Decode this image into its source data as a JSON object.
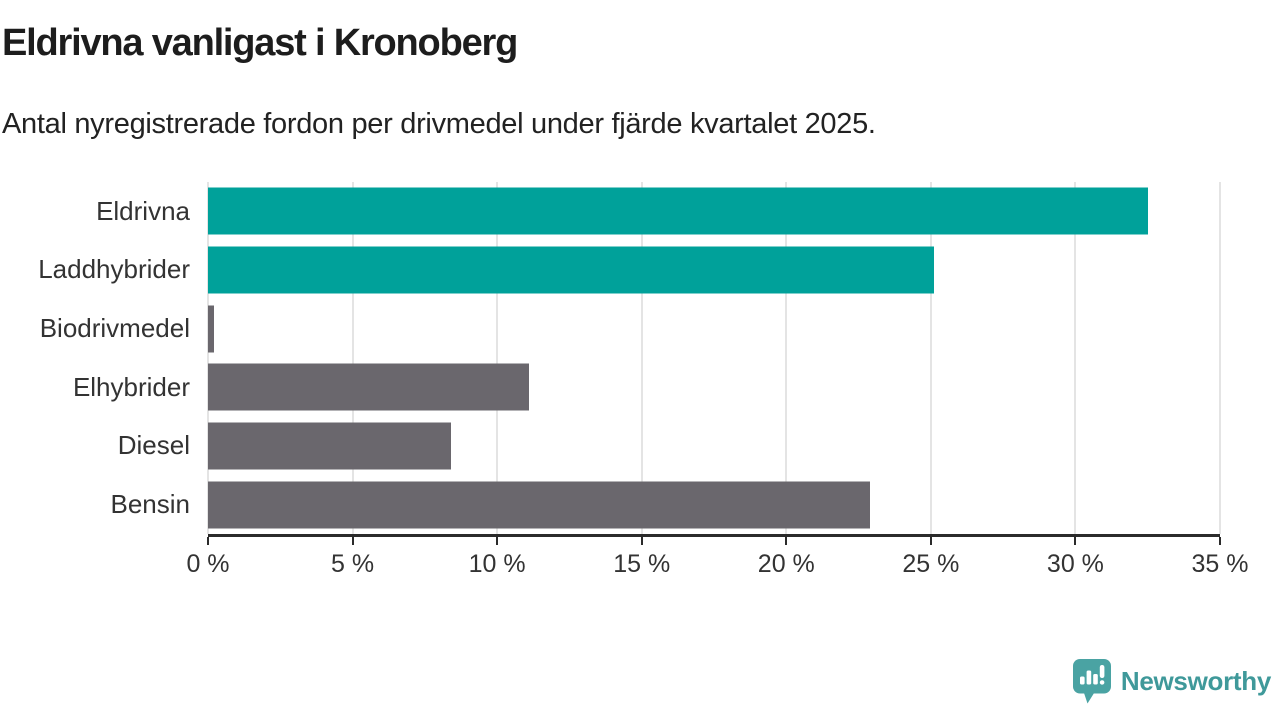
{
  "header": {
    "title": "Eldrivna vanligast i Kronoberg",
    "subtitle": "Antal nyregistrerade fordon per drivmedel under fjärde kvartalet 2025."
  },
  "chart_data": {
    "type": "bar",
    "orientation": "horizontal",
    "title": "Eldrivna vanligast i Kronoberg",
    "subtitle": "Antal nyregistrerade fordon per drivmedel under fjärde kvartalet 2025.",
    "categories": [
      "Eldrivna",
      "Laddhybrider",
      "Biodrivmedel",
      "Elhybrider",
      "Diesel",
      "Bensin"
    ],
    "values": [
      32.5,
      25.1,
      0.2,
      11.1,
      8.4,
      22.9
    ],
    "unit": "%",
    "xlabel": "",
    "ylabel": "",
    "xlim": [
      0,
      35
    ],
    "x_ticks": [
      0,
      5,
      10,
      15,
      20,
      25,
      30,
      35
    ],
    "x_tick_labels": [
      "0 %",
      "5 %",
      "10 %",
      "15 %",
      "20 %",
      "25 %",
      "30 %",
      "35 %"
    ],
    "grid": "vertical",
    "legend": "none",
    "highlight_color": "#00a19a",
    "default_color": "#6a676d",
    "bar_colors": [
      "#00a19a",
      "#00a19a",
      "#6a676d",
      "#6a676d",
      "#6a676d",
      "#6a676d"
    ]
  },
  "footer": {
    "brand": "Newsworthy",
    "brand_color": "#3f999a",
    "icon_color": "#4aa3a3",
    "icon": "bar-chart-speech-bubble-icon"
  }
}
